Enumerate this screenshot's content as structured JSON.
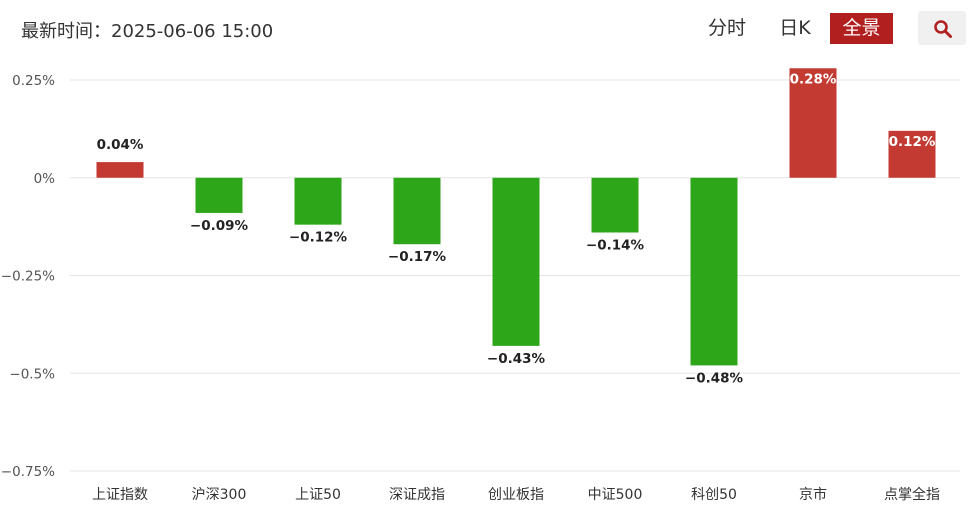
{
  "header": {
    "update_time": "最新时间：2025-06-06 15:00",
    "tabs": [
      {
        "label": "分时",
        "active": false
      },
      {
        "label": "日K",
        "active": false
      },
      {
        "label": "全景",
        "active": true
      }
    ],
    "search_icon": "search-icon"
  },
  "colors": {
    "up": "#c23a32",
    "down": "#2ea61a",
    "active_tab_bg": "#b11f1f",
    "grid": "#e6e6e6",
    "axis_text": "#555555"
  },
  "chart_data": {
    "type": "bar",
    "categories": [
      "上证指数",
      "沪深300",
      "上证50",
      "深证成指",
      "创业板指",
      "中证500",
      "科创50",
      "京市",
      "点掌全指"
    ],
    "values": [
      0.04,
      -0.09,
      -0.12,
      -0.17,
      -0.43,
      -0.14,
      -0.48,
      0.28,
      0.12
    ],
    "value_labels": [
      "0.04%",
      "−0.09%",
      "−0.12%",
      "−0.17%",
      "−0.43%",
      "−0.14%",
      "−0.48%",
      "0.28%",
      "0.12%"
    ],
    "y_ticks": [
      0.25,
      0,
      -0.25,
      -0.5,
      -0.75
    ],
    "y_tick_labels": [
      "0.25%",
      "0%",
      "−0.25%",
      "−0.5%",
      "−0.75%"
    ],
    "ylim": [
      -0.75,
      0.25
    ],
    "grid": true
  }
}
